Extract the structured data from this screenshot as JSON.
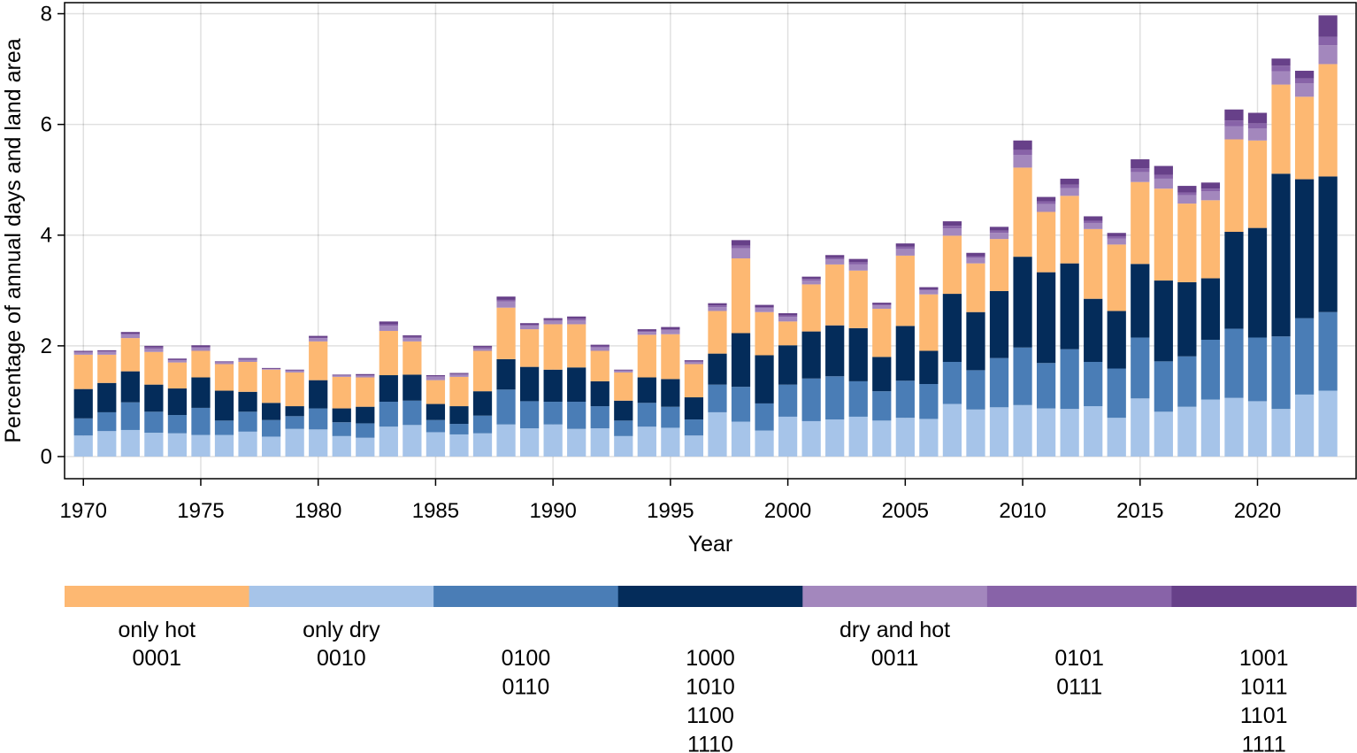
{
  "chart_data": {
    "type": "bar",
    "stacked": true,
    "xlabel": "Year",
    "ylabel": "Percentage of annual days and land area",
    "ylim": [
      -0.4,
      8.2
    ],
    "yticks": [
      0,
      2,
      4,
      6,
      8
    ],
    "xticks": [
      1970,
      1975,
      1980,
      1985,
      1990,
      1995,
      2000,
      2005,
      2010,
      2015,
      2020
    ],
    "xlim": [
      1969.2,
      2024.2
    ],
    "grid": true,
    "categories": [
      1970,
      1971,
      1972,
      1973,
      1974,
      1975,
      1976,
      1977,
      1978,
      1979,
      1980,
      1981,
      1982,
      1983,
      1984,
      1985,
      1986,
      1987,
      1988,
      1989,
      1990,
      1991,
      1992,
      1993,
      1994,
      1995,
      1996,
      1997,
      1998,
      1999,
      2000,
      2001,
      2002,
      2003,
      2004,
      2005,
      2006,
      2007,
      2008,
      2009,
      2010,
      2011,
      2012,
      2013,
      2014,
      2015,
      2016,
      2017,
      2018,
      2019,
      2020,
      2021,
      2022,
      2023
    ],
    "series": [
      {
        "name": "only dry (0010)",
        "color": "#a6c4e9",
        "values": [
          0.38,
          0.46,
          0.48,
          0.43,
          0.42,
          0.39,
          0.39,
          0.45,
          0.36,
          0.5,
          0.49,
          0.37,
          0.34,
          0.54,
          0.57,
          0.44,
          0.4,
          0.42,
          0.58,
          0.51,
          0.58,
          0.5,
          0.51,
          0.37,
          0.54,
          0.52,
          0.38,
          0.8,
          0.63,
          0.47,
          0.72,
          0.64,
          0.67,
          0.72,
          0.65,
          0.7,
          0.68,
          0.95,
          0.85,
          0.89,
          0.93,
          0.87,
          0.86,
          0.91,
          0.7,
          1.05,
          0.81,
          0.9,
          1.03,
          1.06,
          1.0,
          0.86,
          1.12,
          1.19
        ]
      },
      {
        "name": "0100 / 0110",
        "color": "#4a7db6",
        "values": [
          0.31,
          0.34,
          0.5,
          0.38,
          0.33,
          0.49,
          0.26,
          0.36,
          0.3,
          0.23,
          0.38,
          0.25,
          0.26,
          0.45,
          0.44,
          0.22,
          0.19,
          0.32,
          0.63,
          0.49,
          0.41,
          0.49,
          0.4,
          0.28,
          0.43,
          0.38,
          0.29,
          0.5,
          0.63,
          0.49,
          0.58,
          0.77,
          0.78,
          0.64,
          0.53,
          0.67,
          0.63,
          0.76,
          0.71,
          0.89,
          1.04,
          0.82,
          1.08,
          0.8,
          0.89,
          1.1,
          0.91,
          0.91,
          1.08,
          1.25,
          1.15,
          1.31,
          1.38,
          1.42
        ]
      },
      {
        "name": "1000 / 1010 / 1100 / 1110",
        "color": "#042c5a",
        "values": [
          0.53,
          0.53,
          0.56,
          0.49,
          0.48,
          0.55,
          0.54,
          0.36,
          0.31,
          0.18,
          0.51,
          0.25,
          0.3,
          0.48,
          0.47,
          0.29,
          0.32,
          0.44,
          0.55,
          0.62,
          0.58,
          0.62,
          0.45,
          0.36,
          0.46,
          0.5,
          0.4,
          0.56,
          0.97,
          0.87,
          0.71,
          0.85,
          0.92,
          0.96,
          0.62,
          0.99,
          0.6,
          1.23,
          1.05,
          1.21,
          1.64,
          1.64,
          1.55,
          1.14,
          1.04,
          1.33,
          1.46,
          1.34,
          1.11,
          1.75,
          1.98,
          2.94,
          2.51,
          2.45
        ]
      },
      {
        "name": "only hot (0001)",
        "color": "#fdb872",
        "values": [
          0.62,
          0.51,
          0.6,
          0.59,
          0.47,
          0.48,
          0.48,
          0.54,
          0.6,
          0.61,
          0.7,
          0.57,
          0.53,
          0.8,
          0.6,
          0.43,
          0.53,
          0.73,
          0.93,
          0.68,
          0.82,
          0.78,
          0.55,
          0.51,
          0.77,
          0.81,
          0.6,
          0.77,
          1.35,
          0.78,
          0.43,
          0.85,
          1.1,
          1.04,
          0.87,
          1.27,
          1.02,
          1.05,
          0.88,
          0.94,
          1.61,
          1.09,
          1.22,
          1.26,
          1.2,
          1.48,
          1.66,
          1.42,
          1.41,
          1.67,
          1.58,
          1.61,
          1.49,
          2.03
        ]
      },
      {
        "name": "dry and hot (0011)",
        "color": "#a387bd",
        "values": [
          0.04,
          0.05,
          0.06,
          0.06,
          0.04,
          0.05,
          0.03,
          0.04,
          0.01,
          0.03,
          0.06,
          0.02,
          0.03,
          0.09,
          0.06,
          0.06,
          0.04,
          0.04,
          0.11,
          0.06,
          0.06,
          0.07,
          0.06,
          0.03,
          0.05,
          0.07,
          0.04,
          0.07,
          0.18,
          0.07,
          0.08,
          0.07,
          0.09,
          0.11,
          0.06,
          0.12,
          0.07,
          0.13,
          0.1,
          0.11,
          0.23,
          0.14,
          0.14,
          0.11,
          0.11,
          0.18,
          0.18,
          0.15,
          0.16,
          0.24,
          0.22,
          0.24,
          0.24,
          0.34
        ]
      },
      {
        "name": "0101 / 0111",
        "color": "#8863a8",
        "values": [
          0.01,
          0.01,
          0.02,
          0.02,
          0.01,
          0.02,
          0.01,
          0.01,
          0.01,
          0.01,
          0.01,
          0.01,
          0.01,
          0.03,
          0.02,
          0.01,
          0.01,
          0.02,
          0.03,
          0.02,
          0.02,
          0.03,
          0.02,
          0.01,
          0.02,
          0.02,
          0.01,
          0.03,
          0.05,
          0.02,
          0.03,
          0.03,
          0.03,
          0.04,
          0.02,
          0.04,
          0.02,
          0.05,
          0.03,
          0.04,
          0.09,
          0.05,
          0.06,
          0.04,
          0.04,
          0.07,
          0.07,
          0.05,
          0.05,
          0.1,
          0.09,
          0.1,
          0.09,
          0.15
        ]
      },
      {
        "name": "1001 / 1011 / 1101 / 1111",
        "color": "#674089",
        "values": [
          0.02,
          0.02,
          0.03,
          0.03,
          0.02,
          0.03,
          0.01,
          0.02,
          0.01,
          0.01,
          0.03,
          0.01,
          0.02,
          0.05,
          0.03,
          0.02,
          0.02,
          0.03,
          0.06,
          0.03,
          0.03,
          0.04,
          0.03,
          0.01,
          0.03,
          0.04,
          0.02,
          0.04,
          0.1,
          0.04,
          0.04,
          0.04,
          0.05,
          0.06,
          0.03,
          0.06,
          0.04,
          0.08,
          0.06,
          0.07,
          0.17,
          0.08,
          0.11,
          0.08,
          0.06,
          0.16,
          0.16,
          0.12,
          0.11,
          0.2,
          0.19,
          0.13,
          0.14,
          0.39
        ]
      }
    ],
    "legend": {
      "position": "bottom",
      "entries": [
        {
          "color": "#fdb872",
          "title": "only hot",
          "codes": [
            "0001"
          ]
        },
        {
          "color": "#a6c4e9",
          "title": "only dry",
          "codes": [
            "0010"
          ]
        },
        {
          "color": "#4a7db6",
          "title": "",
          "codes": [
            "0100",
            "0110"
          ]
        },
        {
          "color": "#042c5a",
          "title": "",
          "codes": [
            "1000",
            "1010",
            "1100",
            "1110"
          ]
        },
        {
          "color": "#a387bd",
          "title": "dry and hot",
          "codes": [
            "0011"
          ]
        },
        {
          "color": "#8863a8",
          "title": "",
          "codes": [
            "0101",
            "0111"
          ]
        },
        {
          "color": "#674089",
          "title": "",
          "codes": [
            "1001",
            "1011",
            "1101",
            "1111"
          ]
        }
      ]
    }
  }
}
